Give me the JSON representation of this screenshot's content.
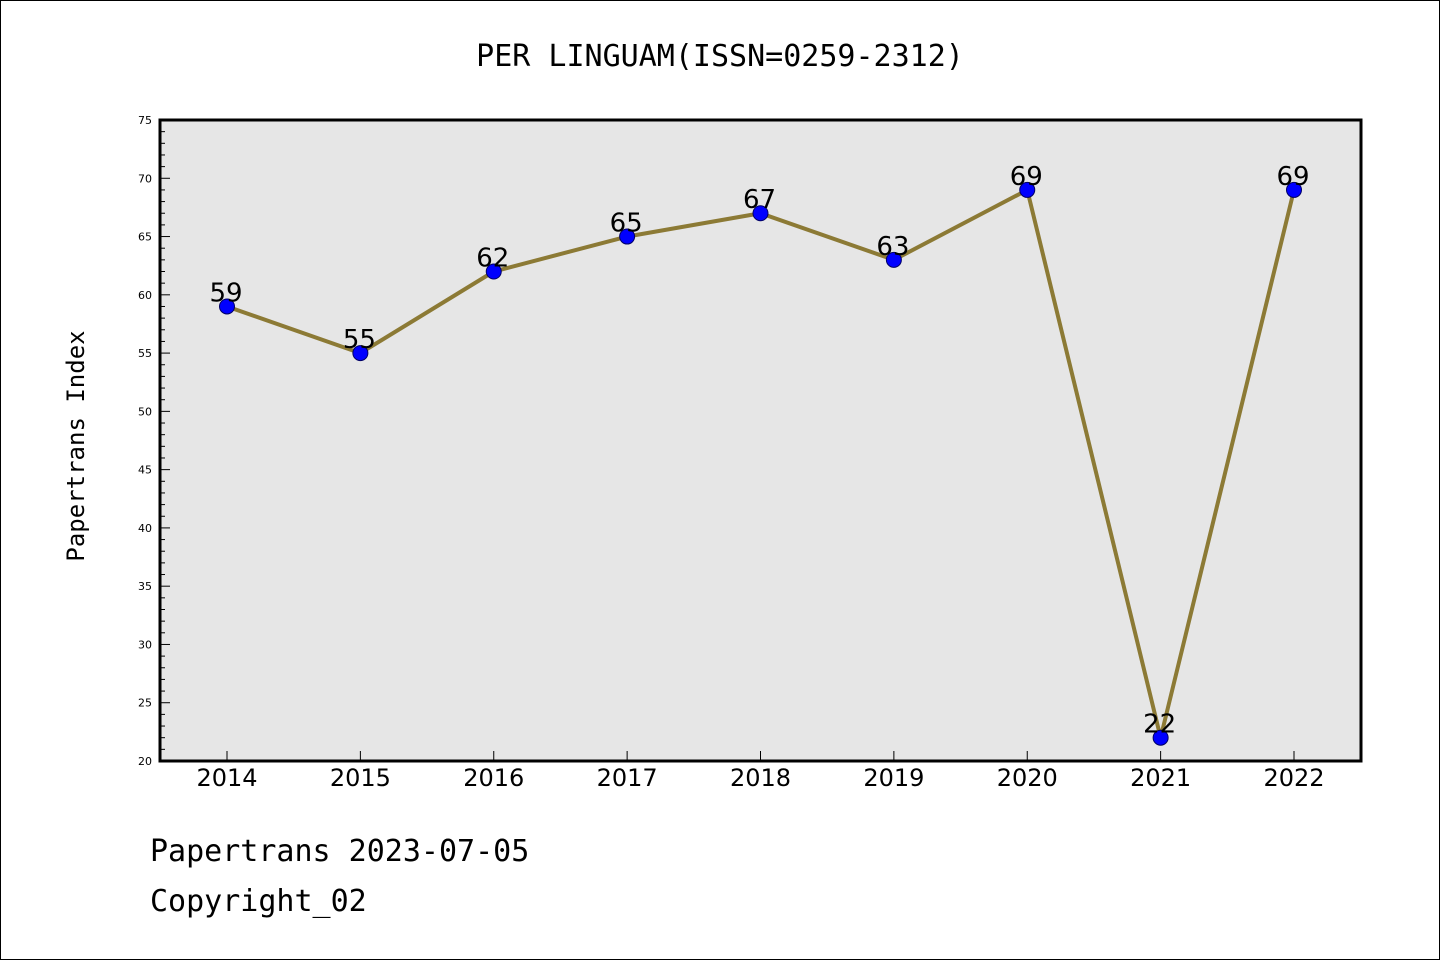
{
  "chart_data": {
    "type": "line",
    "title": "PER LINGUAM(ISSN=0259-2312)",
    "xlabel": "",
    "ylabel": "Papertrans Index",
    "categories": [
      "2014",
      "2015",
      "2016",
      "2017",
      "2018",
      "2019",
      "2020",
      "2021",
      "2022"
    ],
    "values": [
      59,
      55,
      62,
      65,
      67,
      63,
      69,
      22,
      69
    ],
    "data_labels": [
      "59",
      "55",
      "62",
      "65",
      "67",
      "63",
      "69",
      "22",
      "69"
    ],
    "ylim": [
      20,
      75
    ],
    "y_ticks": [
      20,
      25,
      30,
      35,
      40,
      45,
      50,
      55,
      60,
      65,
      70,
      75
    ],
    "grid": false,
    "legend": "none",
    "colors": {
      "line": "#8c7a35",
      "marker_fill": "#0000ff",
      "marker_edge": "#000066",
      "plot_background": "#e6e6e6"
    }
  },
  "footer": {
    "date_line": "Papertrans 2023-07-05",
    "copyright_line": "Copyright_02"
  }
}
